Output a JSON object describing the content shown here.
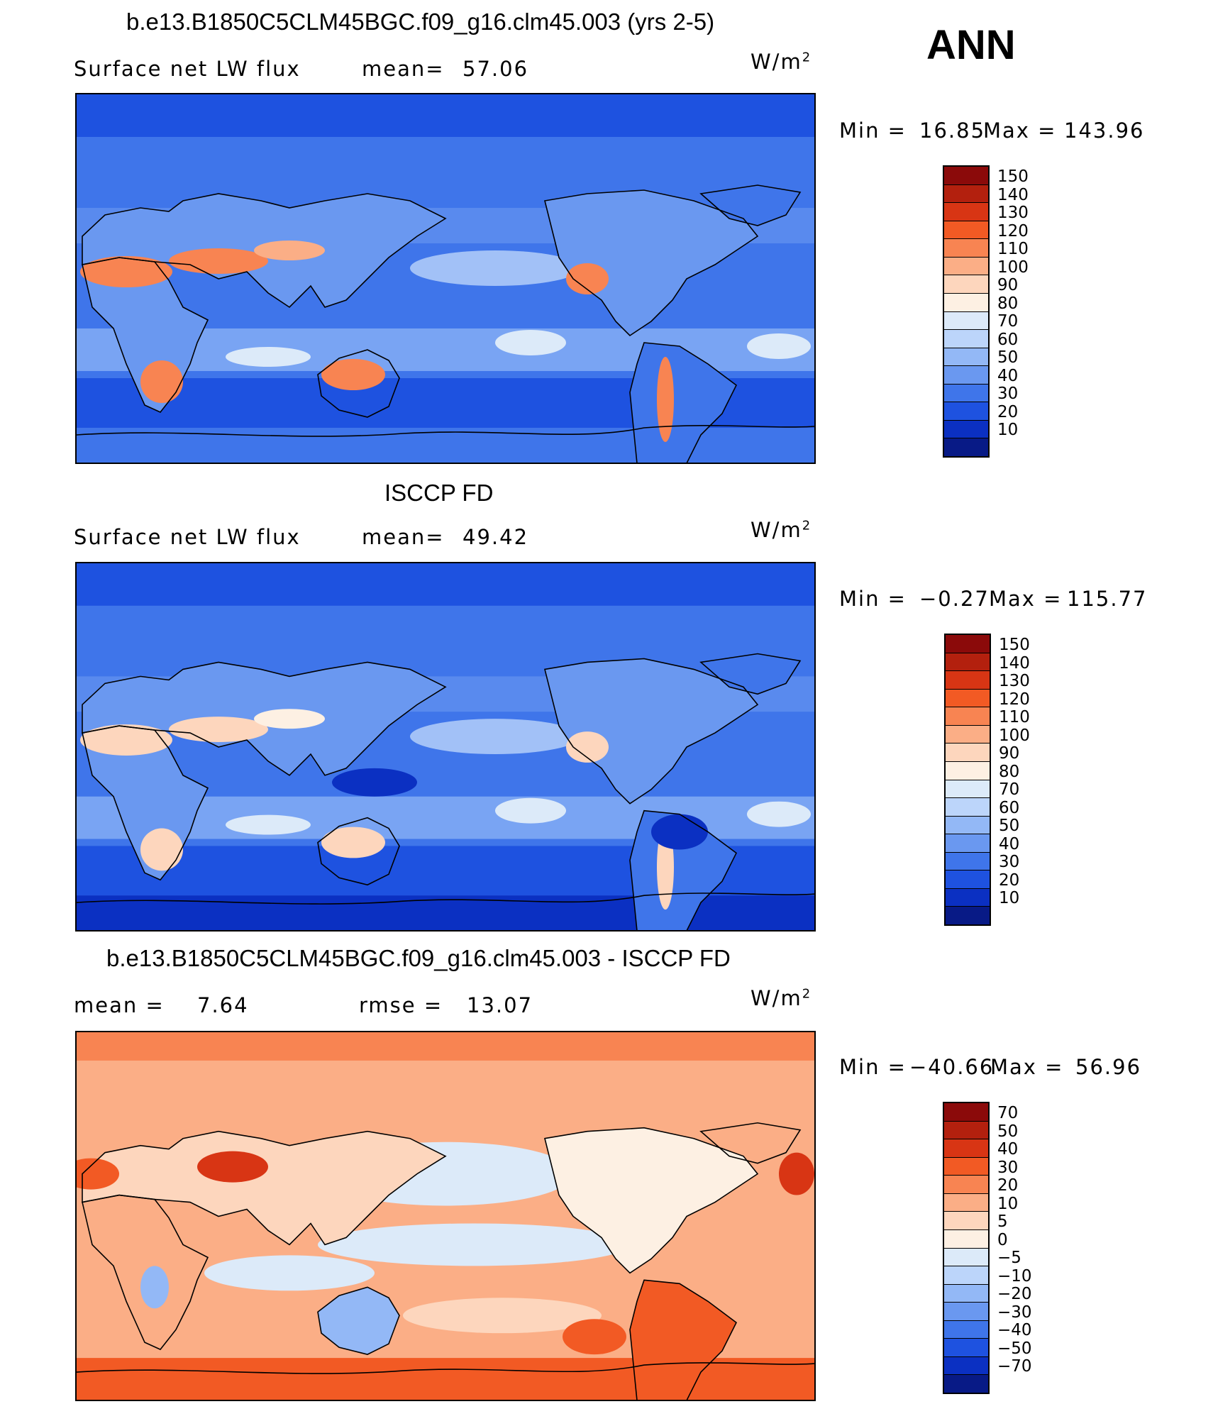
{
  "top_right_label": "ANN",
  "panels": [
    {
      "title": "b.e13.B1850C5CLM45BGC.f09_g16.clm45.003 (yrs 2-5)",
      "variable": "Surface net LW flux",
      "stat_label": "mean=",
      "stat_value": "57.06",
      "units_base": "W/m",
      "units_exp": "2",
      "min_label": "Min =",
      "min_value": "16.85",
      "max_label": "Max =",
      "max_value": "143.96",
      "colorbar_labels": [
        "150",
        "140",
        "130",
        "120",
        "110",
        "100",
        "90",
        "80",
        "70",
        "60",
        "50",
        "40",
        "30",
        "20",
        "10"
      ],
      "colors": [
        "#8b0a0a",
        "#b3200e",
        "#d83514",
        "#f25a24",
        "#f88452",
        "#fbae86",
        "#fdd6bd",
        "#fdf0e3",
        "#dceaf9",
        "#bcd5fa",
        "#93b8f6",
        "#6a98f0",
        "#3f75ea",
        "#1e52e0",
        "#0b30c2",
        "#081a86"
      ],
      "surface": "model"
    },
    {
      "title": "ISCCP FD",
      "variable": "Surface net LW flux",
      "stat_label": "mean=",
      "stat_value": "49.42",
      "units_base": "W/m",
      "units_exp": "2",
      "min_label": "Min =",
      "min_value": "−0.27",
      "max_label": "Max =",
      "max_value": "115.77",
      "colorbar_labels": [
        "150",
        "140",
        "130",
        "120",
        "110",
        "100",
        "90",
        "80",
        "70",
        "60",
        "50",
        "40",
        "30",
        "20",
        "10"
      ],
      "colors": [
        "#8b0a0a",
        "#b3200e",
        "#d83514",
        "#f25a24",
        "#f88452",
        "#fbae86",
        "#fdd6bd",
        "#fdf0e3",
        "#dceaf9",
        "#bcd5fa",
        "#93b8f6",
        "#6a98f0",
        "#3f75ea",
        "#1e52e0",
        "#0b30c2",
        "#081a86"
      ],
      "surface": "obs"
    },
    {
      "title": "b.e13.B1850C5CLM45BGC.f09_g16.clm45.003 - ISCCP FD",
      "variable": "",
      "stat_label": "mean =",
      "stat_value": "7.64",
      "stat2_label": "rmse =",
      "stat2_value": "13.07",
      "units_base": "W/m",
      "units_exp": "2",
      "min_label": "Min =",
      "min_value": "−40.66",
      "max_label": "Max =",
      "max_value": "56.96",
      "colorbar_labels": [
        "70",
        "50",
        "40",
        "30",
        "20",
        "10",
        "5",
        "0",
        "−5",
        "−10",
        "−20",
        "−30",
        "−40",
        "−50",
        "−70"
      ],
      "colors": [
        "#8b0a0a",
        "#b3200e",
        "#d83514",
        "#f25a24",
        "#f88452",
        "#fbae86",
        "#fdd6bd",
        "#fdf0e3",
        "#dceaf9",
        "#bcd5fa",
        "#93b8f6",
        "#6a98f0",
        "#3f75ea",
        "#1e52e0",
        "#0b30c2",
        "#081a86"
      ],
      "surface": "diff"
    }
  ]
}
